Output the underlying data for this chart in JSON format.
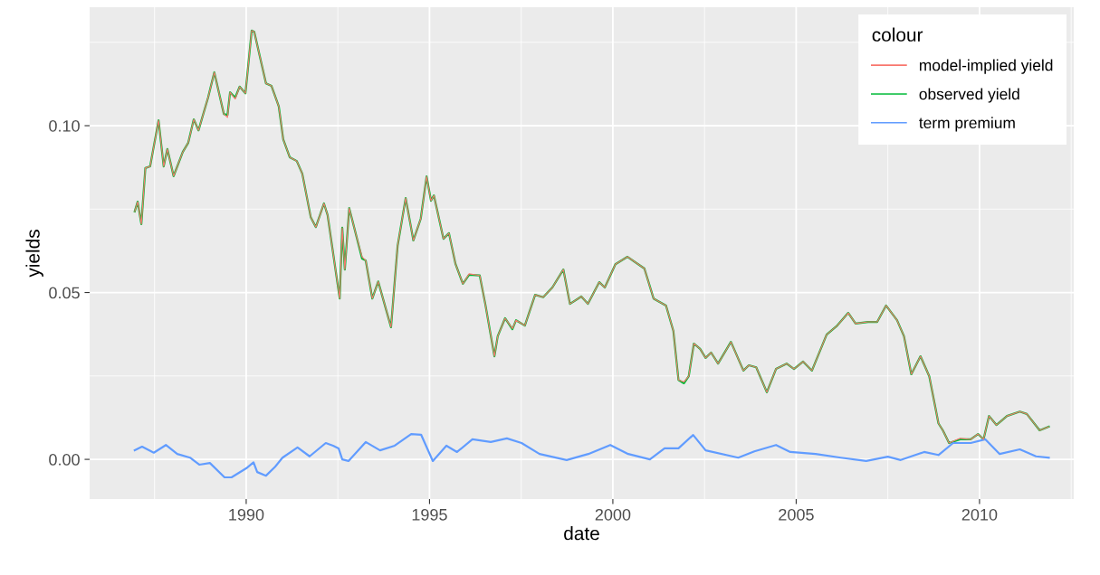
{
  "chart_data": {
    "type": "line",
    "xlabel": "date",
    "ylabel": "yields",
    "legend_title": "colour",
    "xlim": [
      1985.73,
      2012.57
    ],
    "ylim": [
      -0.0119,
      0.1355
    ],
    "xticks": [
      1990,
      1995,
      2000,
      2005,
      2010
    ],
    "yticks": [
      {
        "value": 0,
        "label": "0.00"
      },
      {
        "value": 0.05,
        "label": "0.05"
      },
      {
        "value": 0.1,
        "label": "0.10"
      }
    ],
    "grid": true,
    "legend": "top right",
    "line_style": "solid",
    "marker": "none",
    "series": [
      {
        "name": "model-implied yield",
        "color": "#f8766d",
        "x": [
          1986.96,
          1987.04,
          1987.14,
          1987.25,
          1987.38,
          1987.61,
          1987.75,
          1987.85,
          1988.02,
          1988.27,
          1988.42,
          1988.57,
          1988.7,
          1988.96,
          1989.13,
          1989.39,
          1989.49,
          1989.56,
          1989.7,
          1989.82,
          1989.98,
          1990.15,
          1990.22,
          1990.54,
          1990.69,
          1990.89,
          1991.01,
          1991.19,
          1991.38,
          1991.53,
          1991.76,
          1991.9,
          1992.12,
          1992.22,
          1992.55,
          1992.62,
          1992.69,
          1992.81,
          1993.01,
          1993.16,
          1993.26,
          1993.44,
          1993.6,
          1993.95,
          1994.13,
          1994.35,
          1994.56,
          1994.76,
          1994.92,
          1995.04,
          1995.12,
          1995.38,
          1995.53,
          1995.71,
          1995.91,
          1996.08,
          1996.37,
          1996.52,
          1996.77,
          1996.86,
          1997.06,
          1997.26,
          1997.36,
          1997.6,
          1997.88,
          1998.1,
          1998.35,
          1998.65,
          1998.83,
          1999.14,
          1999.32,
          1999.63,
          1999.78,
          2000.07,
          2000.4,
          2000.86,
          2001.11,
          2001.45,
          2001.65,
          2001.79,
          2001.94,
          2002.07,
          2002.21,
          2002.38,
          2002.53,
          2002.68,
          2002.87,
          2003.22,
          2003.56,
          2003.71,
          2003.91,
          2004.2,
          2004.45,
          2004.74,
          2004.94,
          2005.19,
          2005.43,
          2005.83,
          2006.12,
          2006.42,
          2006.62,
          2006.96,
          2007.21,
          2007.45,
          2007.75,
          2007.94,
          2008.14,
          2008.39,
          2008.63,
          2008.88,
          2009.0,
          2009.17,
          2009.47,
          2009.76,
          2009.96,
          2010.11,
          2010.26,
          2010.46,
          2010.75,
          2011.1,
          2011.29,
          2011.64,
          2011.89
        ],
        "values": [
          0.0743,
          0.0772,
          0.0705,
          0.0873,
          0.0878,
          0.1016,
          0.0878,
          0.093,
          0.0849,
          0.0921,
          0.0949,
          0.1019,
          0.0986,
          0.1084,
          0.116,
          0.1035,
          0.1025,
          0.11,
          0.108,
          0.1117,
          0.1097,
          0.1285,
          0.1281,
          0.1127,
          0.1119,
          0.1057,
          0.0959,
          0.0905,
          0.0894,
          0.0856,
          0.0726,
          0.0696,
          0.0767,
          0.0732,
          0.0482,
          0.0694,
          0.0569,
          0.0753,
          0.0667,
          0.0607,
          0.0596,
          0.0482,
          0.0533,
          0.0396,
          0.064,
          0.0783,
          0.0656,
          0.0721,
          0.0848,
          0.0775,
          0.0791,
          0.0661,
          0.0678,
          0.0585,
          0.0526,
          0.0556,
          0.0551,
          0.0466,
          0.0309,
          0.0369,
          0.0423,
          0.0392,
          0.0417,
          0.0401,
          0.0493,
          0.0486,
          0.0515,
          0.0569,
          0.0466,
          0.0488,
          0.0466,
          0.0531,
          0.0515,
          0.0585,
          0.0607,
          0.0572,
          0.0482,
          0.0461,
          0.0385,
          0.0238,
          0.0232,
          0.0249,
          0.0347,
          0.0331,
          0.0304,
          0.032,
          0.0287,
          0.0352,
          0.0266,
          0.0282,
          0.0276,
          0.0201,
          0.0271,
          0.0287,
          0.0271,
          0.0293,
          0.0266,
          0.0374,
          0.0401,
          0.0439,
          0.0407,
          0.0412,
          0.0412,
          0.0461,
          0.0417,
          0.0369,
          0.0255,
          0.0309,
          0.0249,
          0.0108,
          0.0087,
          0.0049,
          0.0063,
          0.006,
          0.0076,
          0.006,
          0.013,
          0.0103,
          0.013,
          0.0143,
          0.0136,
          0.0087,
          0.0098
        ]
      },
      {
        "name": "observed yield",
        "color": "#00ba38",
        "x": [
          1986.96,
          1987.04,
          1987.14,
          1987.25,
          1987.38,
          1987.61,
          1987.75,
          1987.85,
          1988.02,
          1988.27,
          1988.42,
          1988.57,
          1988.7,
          1988.96,
          1989.13,
          1989.39,
          1989.49,
          1989.56,
          1989.7,
          1989.82,
          1989.98,
          1990.15,
          1990.22,
          1990.54,
          1990.69,
          1990.89,
          1991.01,
          1991.19,
          1991.38,
          1991.53,
          1991.76,
          1991.9,
          1992.12,
          1992.22,
          1992.55,
          1992.62,
          1992.69,
          1992.81,
          1993.01,
          1993.16,
          1993.26,
          1993.44,
          1993.6,
          1993.95,
          1994.13,
          1994.35,
          1994.56,
          1994.76,
          1994.92,
          1995.04,
          1995.12,
          1995.38,
          1995.53,
          1995.71,
          1995.91,
          1996.08,
          1996.37,
          1996.52,
          1996.77,
          1996.86,
          1997.06,
          1997.26,
          1997.36,
          1997.6,
          1997.88,
          1998.1,
          1998.35,
          1998.65,
          1998.83,
          1999.14,
          1999.32,
          1999.63,
          1999.78,
          2000.07,
          2000.4,
          2000.86,
          2001.11,
          2001.45,
          2001.65,
          2001.79,
          2001.94,
          2002.07,
          2002.21,
          2002.38,
          2002.53,
          2002.68,
          2002.87,
          2003.22,
          2003.56,
          2003.71,
          2003.91,
          2004.2,
          2004.45,
          2004.74,
          2004.94,
          2005.19,
          2005.43,
          2005.83,
          2006.12,
          2006.42,
          2006.62,
          2006.96,
          2007.21,
          2007.45,
          2007.75,
          2007.94,
          2008.14,
          2008.39,
          2008.63,
          2008.88,
          2009.0,
          2009.17,
          2009.47,
          2009.76,
          2009.96,
          2010.11,
          2010.26,
          2010.46,
          2010.75,
          2011.1,
          2011.29,
          2011.64,
          2011.89
        ],
        "values": [
          0.0743,
          0.0772,
          0.0705,
          0.0873,
          0.0878,
          0.1016,
          0.0878,
          0.093,
          0.0849,
          0.0921,
          0.0949,
          0.1019,
          0.0986,
          0.1084,
          0.116,
          0.1035,
          0.1032,
          0.11,
          0.1084,
          0.1117,
          0.1097,
          0.1285,
          0.1281,
          0.1127,
          0.1119,
          0.1057,
          0.0959,
          0.0905,
          0.0894,
          0.0856,
          0.0726,
          0.0696,
          0.0767,
          0.0732,
          0.0482,
          0.0694,
          0.0569,
          0.0753,
          0.0667,
          0.0602,
          0.0596,
          0.0482,
          0.0533,
          0.0396,
          0.064,
          0.0783,
          0.0656,
          0.0721,
          0.0848,
          0.0775,
          0.0791,
          0.0661,
          0.0678,
          0.0585,
          0.0526,
          0.0553,
          0.0551,
          0.0466,
          0.0309,
          0.0369,
          0.0423,
          0.039,
          0.0417,
          0.0401,
          0.0493,
          0.0486,
          0.0515,
          0.0569,
          0.0466,
          0.0488,
          0.0466,
          0.0531,
          0.0515,
          0.0585,
          0.0607,
          0.0572,
          0.0482,
          0.0461,
          0.0385,
          0.0238,
          0.0228,
          0.0249,
          0.0347,
          0.0331,
          0.0304,
          0.032,
          0.0287,
          0.0352,
          0.0266,
          0.0282,
          0.0276,
          0.0201,
          0.0271,
          0.0287,
          0.0271,
          0.0293,
          0.0266,
          0.0374,
          0.0401,
          0.0439,
          0.0407,
          0.0412,
          0.0412,
          0.0461,
          0.0417,
          0.0369,
          0.0255,
          0.0309,
          0.0249,
          0.0108,
          0.0087,
          0.0049,
          0.006,
          0.006,
          0.0076,
          0.006,
          0.013,
          0.0103,
          0.013,
          0.0143,
          0.0136,
          0.0087,
          0.0098
        ]
      },
      {
        "name": "term premium",
        "color": "#619cff",
        "x": [
          1986.96,
          1987.16,
          1987.48,
          1987.81,
          1988.12,
          1988.47,
          1988.72,
          1989.01,
          1989.41,
          1989.6,
          1990.0,
          1990.2,
          1990.3,
          1990.54,
          1990.79,
          1990.99,
          1991.4,
          1991.73,
          1992.17,
          1992.37,
          1992.52,
          1992.62,
          1992.79,
          1993.26,
          1993.65,
          1994.05,
          1994.5,
          1994.77,
          1995.09,
          1995.46,
          1995.75,
          1996.17,
          1996.67,
          1997.11,
          1997.51,
          1998.0,
          1998.74,
          1999.33,
          1999.93,
          2000.42,
          2001.01,
          2001.41,
          2001.79,
          2002.19,
          2002.53,
          2003.42,
          2003.86,
          2004.45,
          2004.84,
          2005.53,
          2006.22,
          2006.91,
          2007.5,
          2007.85,
          2008.49,
          2008.88,
          2009.28,
          2009.76,
          2010.16,
          2010.55,
          2011.1,
          2011.54,
          2011.89
        ],
        "values": [
          0.0027,
          0.0038,
          0.002,
          0.0043,
          0.0016,
          0.0005,
          -0.0016,
          -0.0011,
          -0.0054,
          -0.0054,
          -0.0027,
          -0.0009,
          -0.0038,
          -0.0049,
          -0.0022,
          0.0005,
          0.0036,
          0.0009,
          0.0049,
          0.0041,
          0.0033,
          0.0,
          -0.0005,
          0.0052,
          0.0027,
          0.0041,
          0.0076,
          0.0074,
          -0.0005,
          0.0041,
          0.0022,
          0.006,
          0.0052,
          0.0063,
          0.0049,
          0.0016,
          -0.0002,
          0.0016,
          0.0043,
          0.0016,
          0.0,
          0.0033,
          0.0033,
          0.0073,
          0.0027,
          0.0005,
          0.0024,
          0.0043,
          0.0022,
          0.0016,
          0.0005,
          -0.0005,
          0.0008,
          -0.0002,
          0.0022,
          0.0013,
          0.0049,
          0.0049,
          0.006,
          0.0016,
          0.003,
          0.0009,
          0.0005
        ]
      }
    ]
  }
}
